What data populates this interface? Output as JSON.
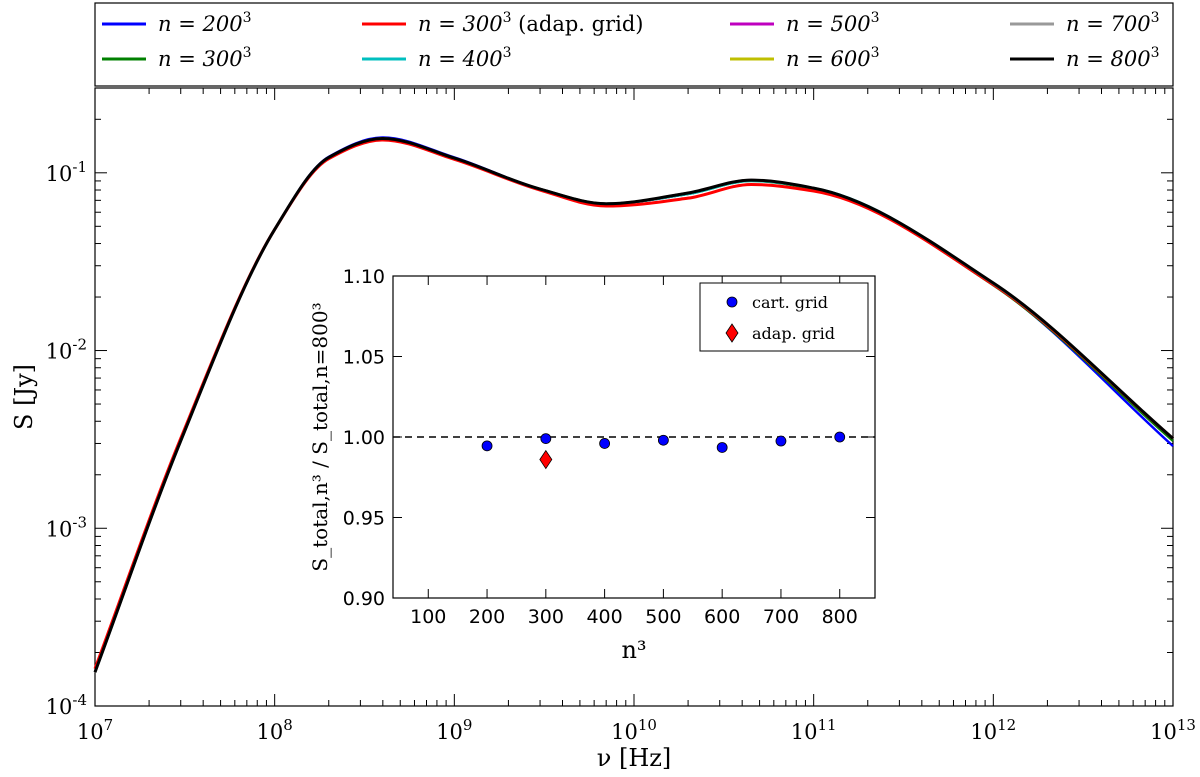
{
  "chart_data": [
    {
      "type": "line",
      "title": "",
      "xlabel": "ν [Hz]",
      "ylabel": "S [Jy]",
      "xscale": "log",
      "yscale": "log",
      "xlim": [
        10000000.0,
        10000000000000.0
      ],
      "ylim": [
        0.0001,
        0.3
      ],
      "x_tick_labels": [
        {
          "base": "10",
          "exp": "7"
        },
        {
          "base": "10",
          "exp": "8"
        },
        {
          "base": "10",
          "exp": "9"
        },
        {
          "base": "10",
          "exp": "10"
        },
        {
          "base": "10",
          "exp": "11"
        },
        {
          "base": "10",
          "exp": "12"
        },
        {
          "base": "10",
          "exp": "13"
        }
      ],
      "y_tick_labels": [
        {
          "base": "10",
          "exp": "-1"
        },
        {
          "base": "10",
          "exp": "-2"
        },
        {
          "base": "10",
          "exp": "-3"
        },
        {
          "base": "10",
          "exp": "-4"
        }
      ],
      "legend_position": "top (above plot, 4 columns)",
      "series": [
        {
          "name": "n = 200³",
          "prefix": "n = 200",
          "sup": "3",
          "suffix": "",
          "color": "#0000ff",
          "x": [
            10000000.0,
            30000000.0,
            100000000.0,
            200000000.0,
            400000000.0,
            1000000000.0,
            3000000000.0,
            7000000000.0,
            20000000000.0,
            45000000000.0,
            100000000000.0,
            1000000000000.0,
            10000000000000.0
          ],
          "y": [
            0.000155,
            0.0031,
            0.048,
            0.123,
            0.158,
            0.122,
            0.081,
            0.067,
            0.076,
            0.091,
            0.082,
            0.0235,
            0.0029
          ]
        },
        {
          "name": "n = 300³",
          "prefix": "n = 300",
          "sup": "3",
          "suffix": "",
          "color": "#008000",
          "x": [
            10000000.0,
            30000000.0,
            100000000.0,
            200000000.0,
            400000000.0,
            1000000000.0,
            3000000000.0,
            7000000000.0,
            20000000000.0,
            45000000000.0,
            100000000000.0,
            1000000000000.0,
            10000000000000.0
          ],
          "y": [
            0.000155,
            0.0031,
            0.048,
            0.122,
            0.156,
            0.121,
            0.081,
            0.067,
            0.076,
            0.09,
            0.081,
            0.0233,
            0.0031
          ]
        },
        {
          "name": "n = 300³ (adap. grid)",
          "prefix": "n = 300",
          "sup": "3",
          "suffix": " (adap. grid)",
          "color": "#ff0000",
          "x": [
            10000000.0,
            30000000.0,
            100000000.0,
            200000000.0,
            400000000.0,
            1000000000.0,
            3000000000.0,
            7000000000.0,
            20000000000.0,
            45000000000.0,
            100000000000.0,
            1000000000000.0,
            10000000000000.0
          ],
          "y": [
            0.000162,
            0.0032,
            0.048,
            0.12,
            0.153,
            0.119,
            0.08,
            0.065,
            0.072,
            0.086,
            0.079,
            0.0235,
            0.0032
          ]
        },
        {
          "name": "n = 400³",
          "prefix": "n = 400",
          "sup": "3",
          "suffix": "",
          "color": "#00bfbf",
          "x": [
            10000000.0,
            30000000.0,
            100000000.0,
            200000000.0,
            400000000.0,
            1000000000.0,
            3000000000.0,
            7000000000.0,
            20000000000.0,
            45000000000.0,
            100000000000.0,
            1000000000000.0,
            10000000000000.0
          ],
          "y": [
            0.000155,
            0.0031,
            0.048,
            0.122,
            0.156,
            0.121,
            0.081,
            0.067,
            0.076,
            0.09,
            0.082,
            0.0238,
            0.0032
          ]
        },
        {
          "name": "n = 500³",
          "prefix": "n = 500",
          "sup": "3",
          "suffix": "",
          "color": "#bf00bf",
          "x": [
            10000000.0,
            30000000.0,
            100000000.0,
            200000000.0,
            400000000.0,
            1000000000.0,
            3000000000.0,
            7000000000.0,
            20000000000.0,
            45000000000.0,
            100000000000.0,
            1000000000000.0,
            10000000000000.0
          ],
          "y": [
            0.000155,
            0.0031,
            0.048,
            0.122,
            0.156,
            0.121,
            0.081,
            0.067,
            0.077,
            0.091,
            0.082,
            0.0239,
            0.0032
          ]
        },
        {
          "name": "n = 600³",
          "prefix": "n = 600",
          "sup": "3",
          "suffix": "",
          "color": "#bfbf00",
          "x": [
            10000000.0,
            30000000.0,
            100000000.0,
            200000000.0,
            400000000.0,
            1000000000.0,
            3000000000.0,
            7000000000.0,
            20000000000.0,
            45000000000.0,
            100000000000.0,
            1000000000000.0,
            10000000000000.0
          ],
          "y": [
            0.000155,
            0.0031,
            0.048,
            0.122,
            0.156,
            0.121,
            0.081,
            0.067,
            0.077,
            0.091,
            0.082,
            0.0239,
            0.0032
          ]
        },
        {
          "name": "n = 700³",
          "prefix": "n = 700",
          "sup": "3",
          "suffix": "",
          "color": "#999999",
          "x": [
            10000000.0,
            30000000.0,
            100000000.0,
            200000000.0,
            400000000.0,
            1000000000.0,
            3000000000.0,
            7000000000.0,
            20000000000.0,
            45000000000.0,
            100000000000.0,
            1000000000000.0,
            10000000000000.0
          ],
          "y": [
            0.000155,
            0.0031,
            0.048,
            0.122,
            0.156,
            0.121,
            0.081,
            0.067,
            0.077,
            0.091,
            0.082,
            0.024,
            0.0032
          ]
        },
        {
          "name": "n = 800³",
          "prefix": "n = 800",
          "sup": "3",
          "suffix": "",
          "color": "#000000",
          "x": [
            10000000.0,
            30000000.0,
            100000000.0,
            200000000.0,
            400000000.0,
            1000000000.0,
            3000000000.0,
            7000000000.0,
            20000000000.0,
            45000000000.0,
            100000000000.0,
            1000000000000.0,
            10000000000000.0
          ],
          "y": [
            0.000155,
            0.0031,
            0.048,
            0.122,
            0.156,
            0.121,
            0.081,
            0.067,
            0.077,
            0.091,
            0.082,
            0.024,
            0.0032
          ]
        }
      ]
    },
    {
      "type": "scatter",
      "title": "",
      "xlabel": "n³",
      "ylabel": "S_total,n³ / S_total,n=800³",
      "xlim": [
        40,
        860
      ],
      "ylim": [
        0.9,
        1.1
      ],
      "x_ticks": [
        100,
        200,
        300,
        400,
        500,
        600,
        700,
        800
      ],
      "y_ticks": [
        0.9,
        0.95,
        1.0,
        1.05,
        1.1
      ],
      "y_tick_labels": [
        "0.90",
        "0.95",
        "1.00",
        "1.05",
        "1.10"
      ],
      "reference_line": {
        "y": 1.0,
        "style": "dashed"
      },
      "legend_position": "top-right",
      "series": [
        {
          "name": "cart. grid",
          "marker": "circle",
          "color": "#0000ff",
          "x": [
            200,
            300,
            400,
            500,
            600,
            700,
            800
          ],
          "y": [
            0.9945,
            0.999,
            0.996,
            0.998,
            0.9935,
            0.9975,
            1.0
          ]
        },
        {
          "name": "adap. grid",
          "marker": "diamond",
          "color": "#ff0000",
          "x": [
            300
          ],
          "y": [
            0.986
          ]
        }
      ]
    }
  ]
}
